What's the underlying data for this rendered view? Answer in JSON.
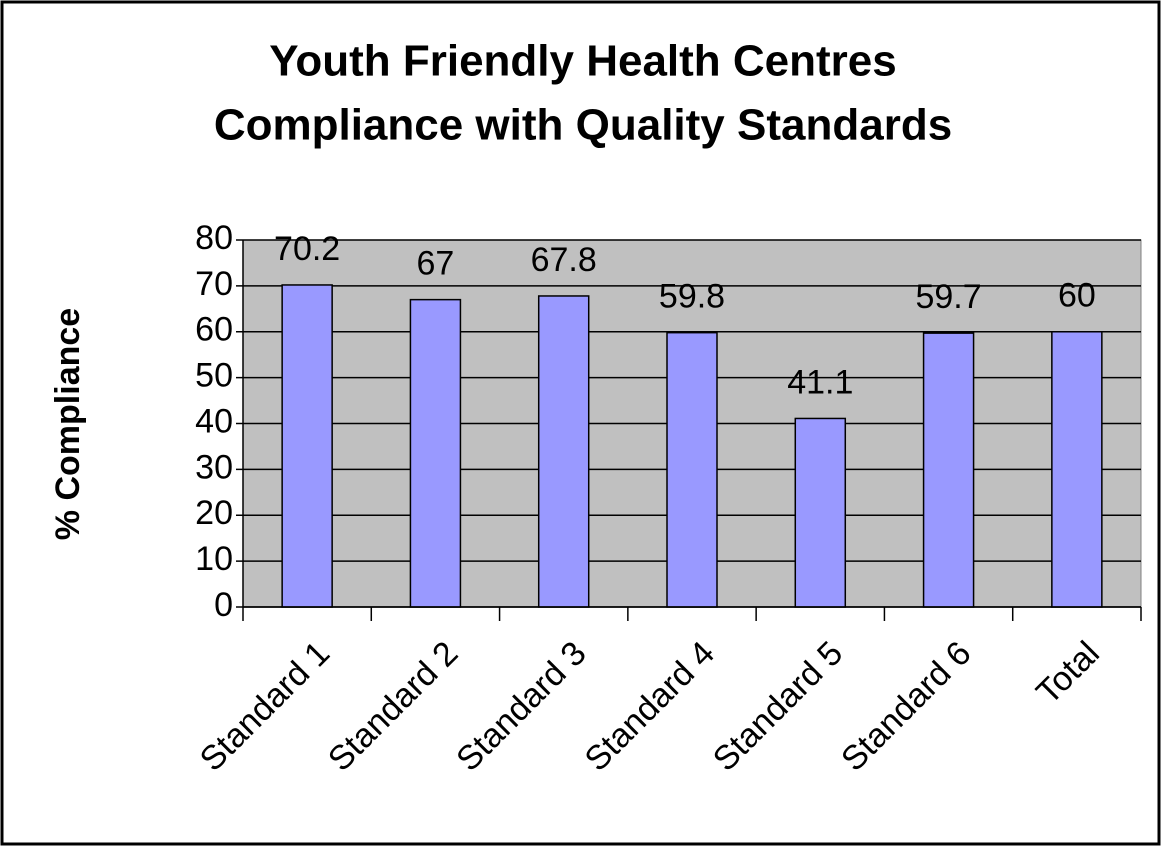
{
  "chart_data": {
    "type": "bar",
    "title": [
      "Youth Friendly Health Centres",
      "Compliance with Quality Standards"
    ],
    "y_label": "% Compliance",
    "categories": [
      "Standard 1",
      "Standard 2",
      "Standard 3",
      "Standard 4",
      "Standard 5",
      "Standard 6",
      "Total"
    ],
    "values": [
      70.2,
      67,
      67.8,
      59.8,
      41.1,
      59.7,
      60
    ],
    "color": "#9999ff",
    "plot_background": "#c0c0c0",
    "ylim": [
      0,
      80
    ],
    "yticks": [
      0,
      10,
      20,
      30,
      40,
      50,
      60,
      70,
      80
    ],
    "grid": true
  }
}
